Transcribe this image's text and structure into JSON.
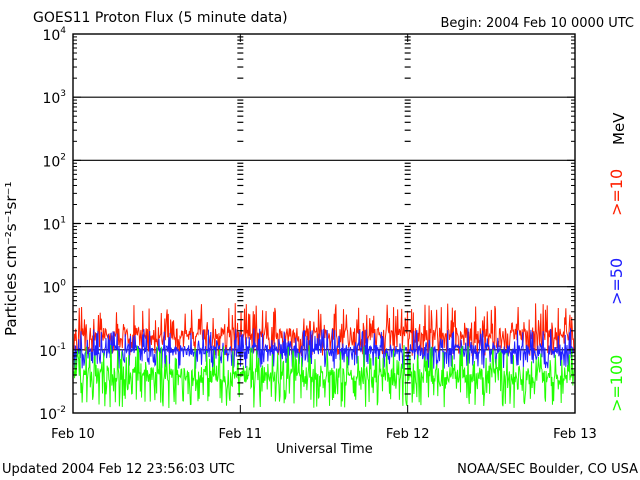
{
  "header": {
    "title": "GOES11 Proton Flux (5 minute data)",
    "begin": "Begin: 2004 Feb 10 0000 UTC"
  },
  "footer": {
    "updated": "Updated 2004 Feb 12 23:56:03 UTC",
    "credit": "NOAA/SEC Boulder, CO USA"
  },
  "units_label": "MeV",
  "chart_data": {
    "type": "line",
    "title": "GOES11 Proton Flux (5 minute data)",
    "xlabel": "Universal Time",
    "ylabel": "Particles cm⁻²s⁻¹sr⁻¹",
    "yscale": "log",
    "ylim": [
      0.01,
      10000
    ],
    "x_ticks": [
      "Feb 10",
      "Feb 11",
      "Feb 12",
      "Feb 13"
    ],
    "y_ticks": [
      {
        "base": "10",
        "exp": "-2",
        "value": 0.01
      },
      {
        "base": "10",
        "exp": "-1",
        "value": 0.1
      },
      {
        "base": "10",
        "exp": "0",
        "value": 1
      },
      {
        "base": "10",
        "exp": "1",
        "value": 10
      },
      {
        "base": "10",
        "exp": "2",
        "value": 100
      },
      {
        "base": "10",
        "exp": "3",
        "value": 1000
      },
      {
        "base": "10",
        "exp": "4",
        "value": 10000
      }
    ],
    "threshold_lines": [
      {
        "value": 0.1,
        "style": "solid",
        "color": "#000000"
      },
      {
        "value": 1,
        "style": "solid"
      },
      {
        "value": 10,
        "style": "dashed"
      },
      {
        "value": 100,
        "style": "solid"
      },
      {
        "value": 1000,
        "style": "solid"
      }
    ],
    "series": [
      {
        "name": ">=10",
        "color": "#ff2000",
        "min": 0.08,
        "max": 0.55,
        "typical": 0.18
      },
      {
        "name": ">=50",
        "color": "#2020ff",
        "min": 0.05,
        "max": 0.22,
        "typical": 0.1
      },
      {
        "name": ">=100",
        "color": "#20ff00",
        "min": 0.012,
        "max": 0.12,
        "typical": 0.04
      }
    ],
    "legend": "right"
  }
}
